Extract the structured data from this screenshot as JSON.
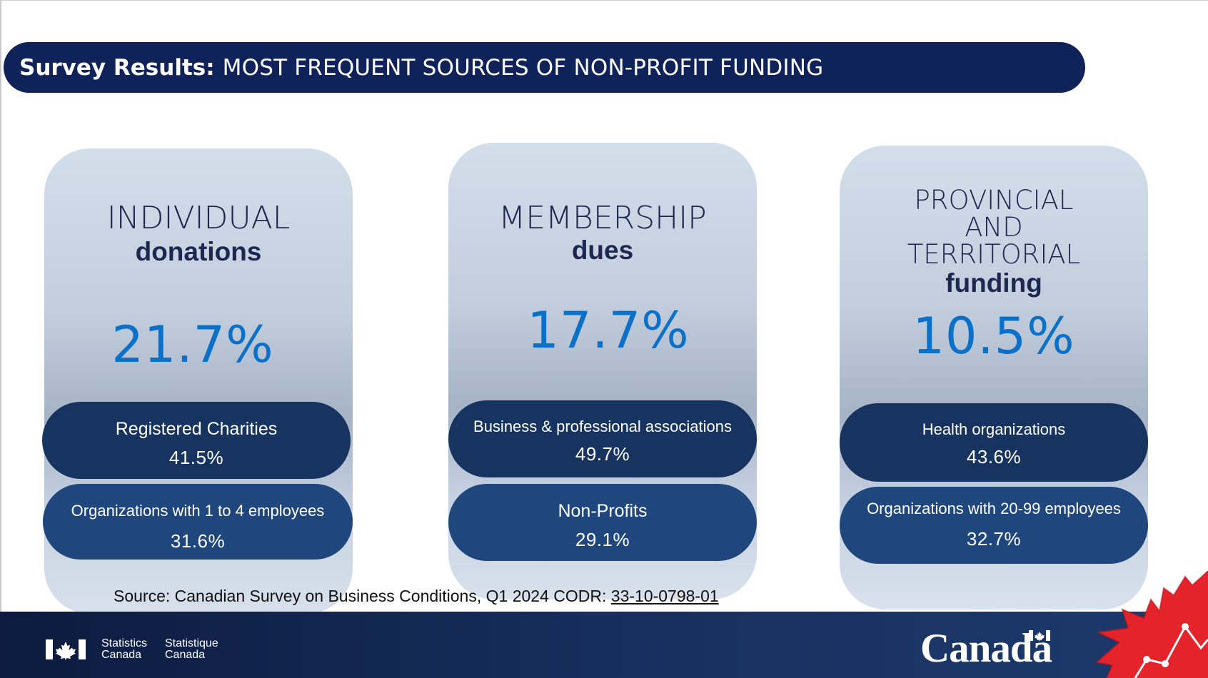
{
  "banner": {
    "bold": "Survey Results:",
    "rest": "MOST FREQUENT SOURCES OF NON-PROFIT FUNDING"
  },
  "cards": [
    {
      "title_lines": [
        "INDIVIDUAL"
      ],
      "subtitle": "donations",
      "percent": "21.7%",
      "items": [
        {
          "label": "Registered Charities",
          "value": "41.5%"
        },
        {
          "label": "Organizations with 1 to 4 employees",
          "value": "31.6%"
        }
      ]
    },
    {
      "title_lines": [
        "MEMBERSHIP"
      ],
      "subtitle": "dues",
      "percent": "17.7%",
      "items": [
        {
          "label": "Business & professional associations",
          "value": "49.7%"
        },
        {
          "label": "Non-Profits",
          "value": "29.1%"
        }
      ]
    },
    {
      "title_lines": [
        "PROVINCIAL",
        "AND",
        "TERRITORIAL"
      ],
      "subtitle": "funding",
      "percent": "10.5%",
      "items": [
        {
          "label": "Health organizations",
          "value": "43.6%"
        },
        {
          "label": "Organizations with 20-99 employees",
          "value": "32.7%"
        }
      ]
    }
  ],
  "source": {
    "prefix": "Source: Canadian Survey on Business Conditions, Q1 2024",
    "codr_label": "CODR:",
    "codr_table": "33-10-0798-01"
  },
  "footer": {
    "statistics_en": [
      "Statistics",
      "Canada"
    ],
    "statistique_fr": [
      "Statistique",
      "Canada"
    ],
    "wordmark": "Canada"
  },
  "colors": {
    "banner": "#0f2259",
    "pill_dark": "#173460",
    "pill_mid": "#1f477d",
    "percent_blue": "#0a70c8",
    "accent_red": "#e5232b"
  },
  "icons": [
    "canada-flag-icon",
    "canada-wordmark-flag-icon",
    "maple-leaf-icon"
  ]
}
